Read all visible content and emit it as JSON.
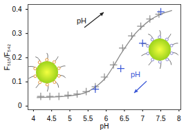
{
  "chart_data": {
    "type": "scatter",
    "x_label": "pH",
    "y_label": "F₅₁₅/F₅₄₂",
    "xlim": [
      3.85,
      8.05
    ],
    "ylim": [
      -0.015,
      0.42
    ],
    "xticks": [
      4,
      4.5,
      5,
      5.5,
      6,
      6.5,
      7,
      7.5,
      8
    ],
    "yticks": [
      0,
      0.1,
      0.2,
      0.3,
      0.4
    ],
    "annotations": [
      {
        "text": "pH",
        "color": "#222222"
      },
      {
        "text": "pH",
        "color": "#3a57d6"
      }
    ],
    "series": [
      {
        "type": "line",
        "color": "#8c8c8c",
        "line_style": "solid",
        "x": [
          4.1,
          4.5,
          5.0,
          5.5,
          5.8,
          6.0,
          6.2,
          6.4,
          6.6,
          6.8,
          7.0,
          7.2,
          7.5,
          7.8
        ],
        "values": [
          0.035,
          0.037,
          0.042,
          0.06,
          0.09,
          0.12,
          0.165,
          0.215,
          0.26,
          0.3,
          0.33,
          0.355,
          0.38,
          0.395
        ]
      },
      {
        "type": "scatter",
        "color": "#8c8c8c",
        "marker": "plus",
        "x": [
          4.2,
          4.45,
          4.7,
          4.95,
          5.2,
          5.45,
          5.7,
          5.95,
          6.2,
          6.45,
          6.7,
          6.95,
          7.2,
          7.45
        ],
        "values": [
          0.04,
          0.04,
          0.04,
          0.045,
          0.05,
          0.06,
          0.08,
          0.12,
          0.17,
          0.24,
          0.29,
          0.33,
          0.36,
          0.38
        ]
      },
      {
        "type": "scatter",
        "color": "#3a57d6",
        "marker": "plus",
        "x": [
          5.7,
          6.4,
          7.0,
          7.5
        ],
        "values": [
          0.07,
          0.155,
          0.26,
          0.39
        ]
      }
    ]
  }
}
